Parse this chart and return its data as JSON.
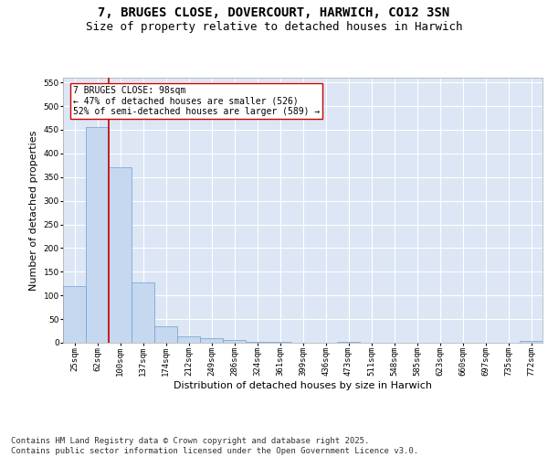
{
  "title1": "7, BRUGES CLOSE, DOVERCOURT, HARWICH, CO12 3SN",
  "title2": "Size of property relative to detached houses in Harwich",
  "xlabel": "Distribution of detached houses by size in Harwich",
  "ylabel": "Number of detached properties",
  "categories": [
    "25sqm",
    "62sqm",
    "100sqm",
    "137sqm",
    "174sqm",
    "212sqm",
    "249sqm",
    "286sqm",
    "324sqm",
    "361sqm",
    "399sqm",
    "436sqm",
    "473sqm",
    "511sqm",
    "548sqm",
    "585sqm",
    "623sqm",
    "660sqm",
    "697sqm",
    "735sqm",
    "772sqm"
  ],
  "values": [
    120,
    455,
    370,
    127,
    35,
    14,
    9,
    5,
    2,
    2,
    0,
    0,
    1,
    0,
    0,
    0,
    0,
    0,
    0,
    0,
    3
  ],
  "bar_color": "#c5d8f0",
  "bar_edge_color": "#6ea0cc",
  "vline_x": 1.5,
  "vline_color": "#cc0000",
  "annotation_text": "7 BRUGES CLOSE: 98sqm\n← 47% of detached houses are smaller (526)\n52% of semi-detached houses are larger (589) →",
  "annotation_box_color": "#ffffff",
  "annotation_box_edge": "#cc0000",
  "ylim": [
    0,
    560
  ],
  "yticks": [
    0,
    50,
    100,
    150,
    200,
    250,
    300,
    350,
    400,
    450,
    500,
    550
  ],
  "background_color": "#dce6f5",
  "grid_color": "#ffffff",
  "footer": "Contains HM Land Registry data © Crown copyright and database right 2025.\nContains public sector information licensed under the Open Government Licence v3.0.",
  "title_fontsize": 10,
  "subtitle_fontsize": 9,
  "tick_fontsize": 6.5,
  "label_fontsize": 8,
  "footer_fontsize": 6.5,
  "fig_bg": "#ffffff"
}
